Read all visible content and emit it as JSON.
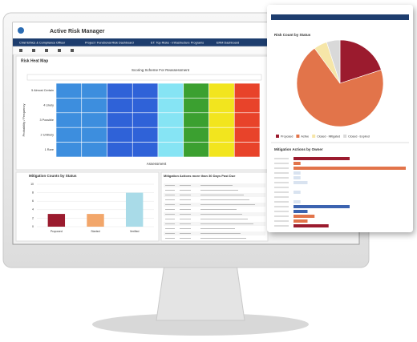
{
  "header": {
    "title": "Active Risk Manager"
  },
  "tabs": [
    "Chief Ethics & Compliance Officer",
    "Project / Functional Risk Dashboard",
    "ET: Top Risks - Infrastructure Programs",
    "ERM Dashboard"
  ],
  "heat_map": {
    "title": "Risk Heat Map",
    "subtitle": "Scoring Scheme For Reassessment",
    "x_label": "Assessment",
    "y_label": "Probability / Frequency",
    "rows": [
      "5 Almost Certain",
      "4 Likely",
      "3 Possible",
      "2 Unlikely",
      "1 Rare"
    ],
    "column_colors": [
      "#3d8ede",
      "#3d8ede",
      "#2f62d8",
      "#2f62d8",
      "#86e4f4",
      "#3ba030",
      "#f2e51e",
      "#e8432a"
    ]
  },
  "mitigation_counts": {
    "title": "Mitigation Counts by Status",
    "categories": [
      "Proposed",
      "Started",
      "Verified"
    ],
    "values": [
      3,
      3,
      8
    ],
    "colors": [
      "#9b1b2e",
      "#f2a66a",
      "#a9dbe8"
    ],
    "ylim": [
      0,
      10
    ],
    "yticks": [
      0,
      2,
      4,
      6,
      8,
      10
    ]
  },
  "past_due": {
    "title": "Mitigation Actions more than 30 Days Past Due"
  },
  "risk_count": {
    "title": "Risk Count by Status",
    "categories": [
      "Proposed",
      "Active",
      "Closed - Mitigated",
      "Closed - Expired"
    ],
    "values": [
      20,
      70,
      5,
      5
    ],
    "colors": [
      "#9b1b2e",
      "#e2744a",
      "#f6e6a8",
      "#d9d9d9"
    ]
  },
  "owner_actions": {
    "title": "Mitigation Actions by Owner",
    "values": [
      4,
      0.5,
      8,
      0.5,
      0.5,
      1,
      0,
      0.5,
      0,
      0.5,
      4,
      1,
      1.5,
      1,
      2.5
    ],
    "colors": [
      "#9b1b2e",
      "#e2744a",
      "#e2744a",
      "#d9e3f0",
      "#d9e3f0",
      "#d9e3f0",
      "#d9e3f0",
      "#d9e3f0",
      "#d9e3f0",
      "#d9e3f0",
      "#3c63b0",
      "#3c63b0",
      "#e2744a",
      "#e2744a",
      "#9b1b2e"
    ],
    "xlim": [
      0,
      8
    ]
  }
}
